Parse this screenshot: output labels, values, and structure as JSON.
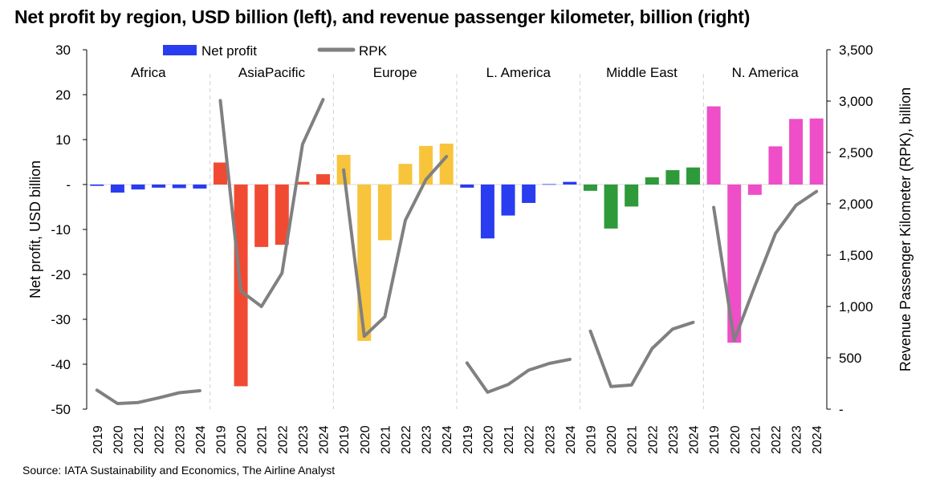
{
  "title": "Net profit by region, USD billion (left), and revenue passenger kilometer, billion (right)",
  "source": "Source: IATA Sustainability and Economics, The Airline Analyst",
  "chart_data": {
    "type": "bar",
    "title": "Net profit by region, USD billion (left), and revenue passenger kilometer, billion (right)",
    "ylabel": "Net profit, USD billion",
    "y2label": "Revenue Passenger Kilometer (RPK), billion",
    "ylim": [
      -50,
      30
    ],
    "y2lim": [
      0,
      3500
    ],
    "yticks": [
      30,
      20,
      10,
      0,
      -10,
      -20,
      -30,
      -40,
      -50
    ],
    "yticklabels": [
      "30",
      "20",
      "10",
      "-",
      "-10",
      "-20",
      "-30",
      "-40",
      "-50"
    ],
    "y2ticks": [
      3500,
      3000,
      2500,
      2000,
      1500,
      1000,
      500,
      0
    ],
    "y2ticklabels": [
      "3,500",
      "3,000",
      "2,500",
      "2,000",
      "1,500",
      "1,000",
      "500",
      "-"
    ],
    "years": [
      "2019",
      "2020",
      "2021",
      "2022",
      "2023",
      "2024"
    ],
    "legend": {
      "placement": "top",
      "entries": [
        "Net profit",
        "RPK"
      ]
    },
    "rpk_color": "#808080",
    "groups": [
      {
        "region": "Africa",
        "color": "#2a3cf0",
        "net_profit": [
          -0.3,
          -1.8,
          -1.1,
          -0.7,
          -0.8,
          -0.9
        ],
        "rpk": [
          185,
          55,
          65,
          110,
          160,
          180
        ]
      },
      {
        "region": "AsiaPacific",
        "color": "#f14a32",
        "net_profit": [
          4.9,
          -44.9,
          -13.9,
          -13.4,
          0.6,
          2.3
        ],
        "rpk": [
          3005,
          1150,
          1000,
          1325,
          2580,
          3015
        ]
      },
      {
        "region": "Europe",
        "color": "#f7c43c",
        "net_profit": [
          6.6,
          -34.8,
          -12.4,
          4.6,
          8.6,
          9.1
        ],
        "rpk": [
          2330,
          710,
          900,
          1840,
          2235,
          2460
        ]
      },
      {
        "region": "L. America",
        "color": "#2a3cf0",
        "net_profit": [
          -0.7,
          -12.0,
          -6.9,
          -4.1,
          0.1,
          0.6
        ],
        "rpk": [
          450,
          165,
          240,
          380,
          445,
          485
        ]
      },
      {
        "region": "Middle East",
        "color": "#2e9a3a",
        "net_profit": [
          -1.4,
          -9.8,
          -4.9,
          1.6,
          3.2,
          3.8
        ],
        "rpk": [
          760,
          220,
          235,
          590,
          780,
          845
        ]
      },
      {
        "region": "N. America",
        "color": "#ee4ec8",
        "net_profit": [
          17.4,
          -35.2,
          -2.3,
          8.5,
          14.6,
          14.7
        ],
        "rpk": [
          1965,
          670,
          1200,
          1710,
          1985,
          2120
        ]
      }
    ]
  }
}
